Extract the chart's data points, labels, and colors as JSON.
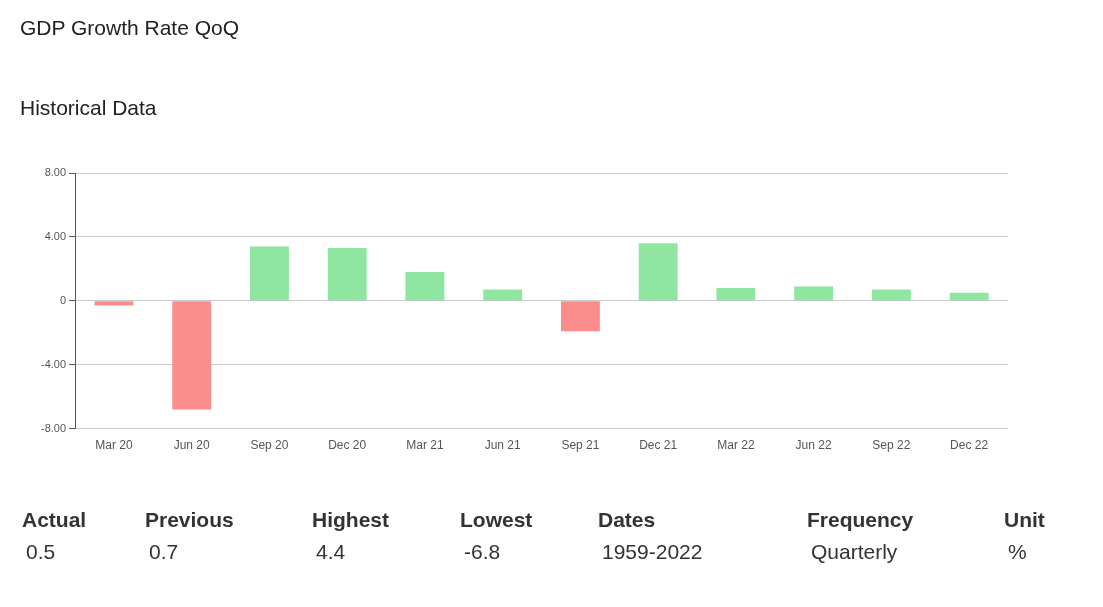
{
  "chart_data": {
    "type": "bar",
    "title": "GDP Growth Rate QoQ",
    "subtitle": "Historical Data",
    "categories": [
      "Mar 20",
      "Jun 20",
      "Sep 20",
      "Dec 20",
      "Mar 21",
      "Jun 21",
      "Sep 21",
      "Dec 21",
      "Mar 22",
      "Jun 22",
      "Sep 22",
      "Dec 22"
    ],
    "values": [
      -0.3,
      -6.8,
      3.4,
      3.3,
      1.8,
      0.7,
      -1.9,
      3.6,
      0.8,
      0.9,
      0.7,
      0.5
    ],
    "colors": [
      "#fc8d8d",
      "#fc8d8d",
      "#8ee6a0",
      "#8ee6a0",
      "#8ee6a0",
      "#8ee6a0",
      "#fc8d8d",
      "#8ee6a0",
      "#8ee6a0",
      "#8ee6a0",
      "#8ee6a0",
      "#8ee6a0"
    ],
    "ylim": [
      -8,
      8
    ],
    "yticks": [
      {
        "value": 8,
        "label": "8.00"
      },
      {
        "value": 4,
        "label": "4.00"
      },
      0,
      {
        "value": -4,
        "label": "-4.00"
      },
      {
        "value": -8,
        "label": "-8.00"
      }
    ],
    "grid": "y",
    "annotations": [
      "Actual",
      "0.5",
      "Previous",
      "0.7",
      "Highest",
      "4.4",
      "Lowest",
      "-6.8",
      "Dates",
      "1959-2022",
      "Frequency",
      "Quarterly",
      "Unit",
      "%"
    ]
  }
}
